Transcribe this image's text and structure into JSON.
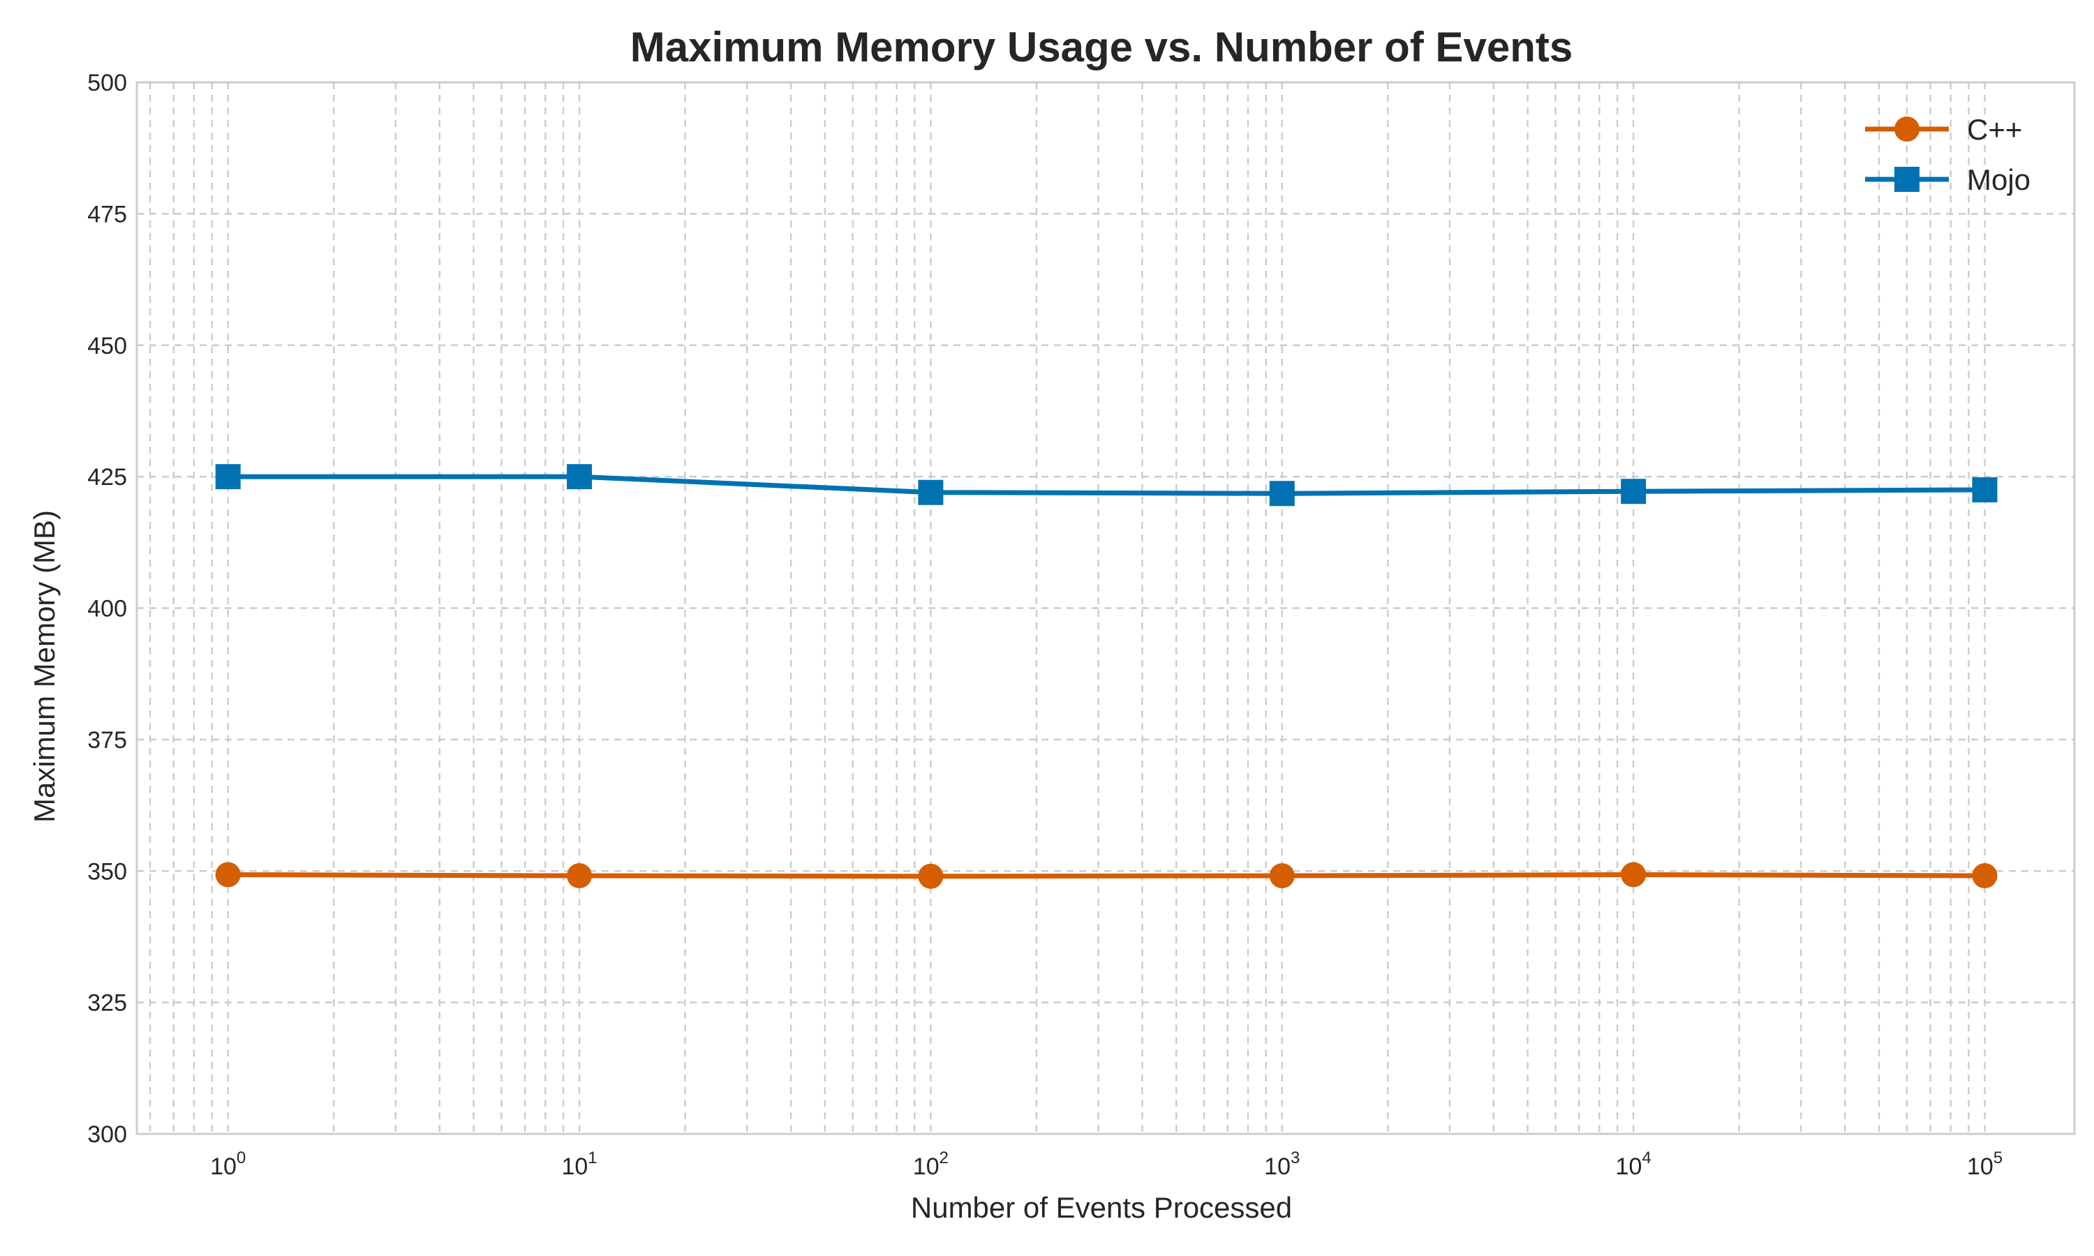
{
  "chart_data": {
    "type": "line",
    "title": "Maximum Memory Usage vs. Number of Events",
    "xlabel": "Number of Events Processed",
    "ylabel": "Maximum Memory (MB)",
    "xscale": "log",
    "xlim": [
      0.55,
      180000
    ],
    "ylim": [
      300,
      500
    ],
    "x": [
      1,
      10,
      100,
      1000,
      10000,
      100000
    ],
    "x_tick_labels": [
      {
        "value": 1,
        "base": "10",
        "exp": "0"
      },
      {
        "value": 10,
        "base": "10",
        "exp": "1"
      },
      {
        "value": 100,
        "base": "10",
        "exp": "2"
      },
      {
        "value": 1000,
        "base": "10",
        "exp": "3"
      },
      {
        "value": 10000,
        "base": "10",
        "exp": "4"
      },
      {
        "value": 100000,
        "base": "10",
        "exp": "5"
      }
    ],
    "y_ticks": [
      300,
      325,
      350,
      375,
      400,
      425,
      450,
      475,
      500
    ],
    "grid": true,
    "legend_position": "top-right",
    "series": [
      {
        "name": "C++",
        "color": "#d55e00",
        "marker": "circle",
        "values": [
          349.3,
          349.1,
          349.0,
          349.1,
          349.3,
          349.1
        ]
      },
      {
        "name": "Mojo",
        "color": "#0072b2",
        "marker": "square",
        "values": [
          425.0,
          425.0,
          422.0,
          421.8,
          422.2,
          422.5
        ]
      }
    ]
  }
}
